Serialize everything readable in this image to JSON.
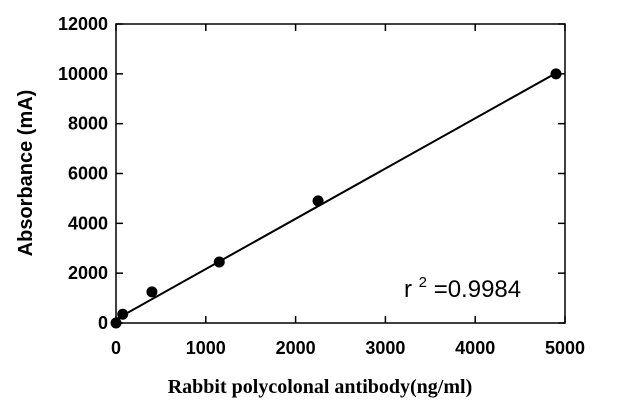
{
  "chart_data": {
    "type": "scatter",
    "title": "",
    "xlabel": "Rabbit polycolonal antibody(ng/ml)",
    "ylabel": "Absorbance (mA)",
    "xlim": [
      0,
      5000
    ],
    "ylim": [
      0,
      12000
    ],
    "x_ticks": [
      "0",
      "1000",
      "2000",
      "3000",
      "4000",
      "5000"
    ],
    "y_ticks": [
      "0",
      "2000",
      "4000",
      "6000",
      "8000",
      "10000",
      "12000"
    ],
    "grid": false,
    "legend": "none",
    "series": [
      {
        "x": [
          0,
          75,
          400,
          1150,
          2250,
          4900
        ],
        "y": [
          0,
          350,
          1250,
          2450,
          4900,
          10000
        ]
      }
    ],
    "trendline": {
      "x": [
        0,
        4900
      ],
      "y": [
        150,
        10030
      ]
    },
    "annotation": {
      "base": "r",
      "sup": "2",
      "rest": "=0.9984"
    },
    "colors": {
      "marker": "#000000",
      "line": "#000000"
    }
  }
}
